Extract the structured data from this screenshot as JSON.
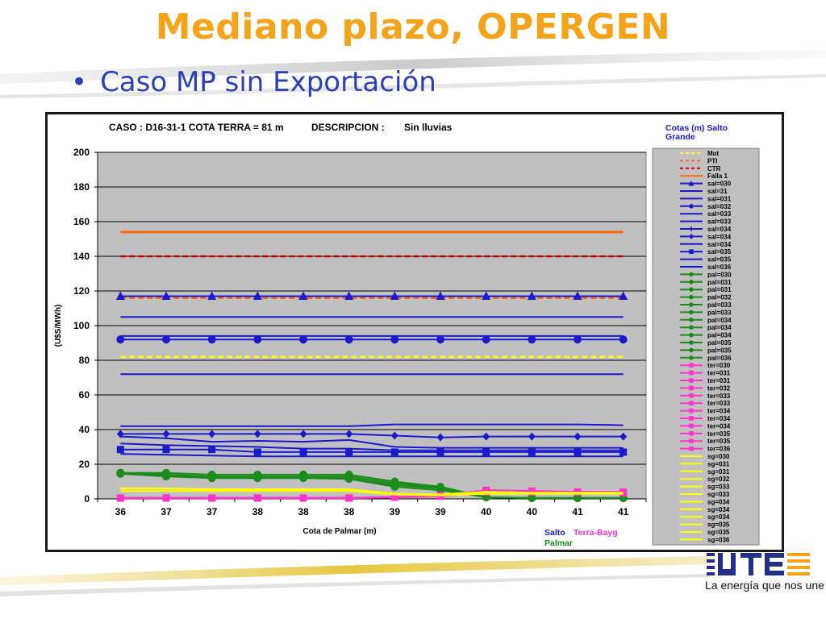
{
  "slide": {
    "title": "Mediano plazo, OPERGEN",
    "subtitle": "Caso MP sin Exportación",
    "bullet": "•",
    "tagline": "La energía que nos une",
    "logo_icon": "ute-logo-icon",
    "colors": {
      "title": "#f5a31a",
      "subtitle": "#2a3fb8",
      "plot_bg": "#c0c0c0",
      "legend_bg": "#c0c0c0"
    }
  },
  "chart_data": {
    "type": "line",
    "title_parts": [
      "CASO : D16-31-1 COTA TERRA = 81 m",
      "DESCRIPCION :",
      "Sin lluvias"
    ],
    "xlabel": "Cota de Palmar (m)",
    "ylabel": "(U$S/MWh)",
    "categories": [
      "36",
      "37",
      "37",
      "38",
      "38",
      "38",
      "39",
      "39",
      "40",
      "40",
      "41",
      "41"
    ],
    "ylim": [
      0,
      200
    ],
    "yticks": [
      0,
      20,
      40,
      60,
      80,
      100,
      120,
      140,
      160,
      180,
      200
    ],
    "grid": true,
    "legend": {
      "title": "Cotas (m) Salto Grande",
      "position": "right",
      "entries": [
        {
          "label": "Mot",
          "color": "#ffff00",
          "dash": true,
          "marker": "none"
        },
        {
          "label": "PTI",
          "color": "#ff6600",
          "dash": true,
          "marker": "none"
        },
        {
          "label": "CTR",
          "color": "#cc0000",
          "dash": true,
          "marker": "none"
        },
        {
          "label": "Falla 1",
          "color": "#ff6600",
          "dash": false,
          "marker": "none"
        },
        {
          "label": "sal=030",
          "color": "#1a1acc",
          "dash": false,
          "marker": "triangle"
        },
        {
          "label": "sal=31",
          "color": "#1a1acc",
          "dash": false,
          "marker": "none"
        },
        {
          "label": "sal=031",
          "color": "#1a1acc",
          "dash": false,
          "marker": "none"
        },
        {
          "label": "sal=032",
          "color": "#1a1acc",
          "dash": false,
          "marker": "circle"
        },
        {
          "label": "sal=033",
          "color": "#1a1acc",
          "dash": false,
          "marker": "none"
        },
        {
          "label": "sal=033",
          "color": "#1a1acc",
          "dash": false,
          "marker": "none"
        },
        {
          "label": "sal=034",
          "color": "#1a1acc",
          "dash": false,
          "marker": "plus"
        },
        {
          "label": "sal=034",
          "color": "#1a1acc",
          "dash": false,
          "marker": "diamond"
        },
        {
          "label": "sal=034",
          "color": "#1a1acc",
          "dash": false,
          "marker": "none"
        },
        {
          "label": "sal=035",
          "color": "#1a1acc",
          "dash": false,
          "marker": "square"
        },
        {
          "label": "sal=035",
          "color": "#1a1acc",
          "dash": false,
          "marker": "none"
        },
        {
          "label": "sal=036",
          "color": "#1a1acc",
          "dash": false,
          "marker": "none"
        },
        {
          "label": "pal=030",
          "color": "#1a8c1a",
          "dash": false,
          "marker": "circle"
        },
        {
          "label": "pal=031",
          "color": "#1a8c1a",
          "dash": false,
          "marker": "circle"
        },
        {
          "label": "pal=031",
          "color": "#1a8c1a",
          "dash": false,
          "marker": "circle"
        },
        {
          "label": "pal=032",
          "color": "#1a8c1a",
          "dash": false,
          "marker": "circle"
        },
        {
          "label": "pal=033",
          "color": "#1a8c1a",
          "dash": false,
          "marker": "circle"
        },
        {
          "label": "pal=033",
          "color": "#1a8c1a",
          "dash": false,
          "marker": "circle"
        },
        {
          "label": "pal=034",
          "color": "#1a8c1a",
          "dash": false,
          "marker": "circle"
        },
        {
          "label": "pal=034",
          "color": "#1a8c1a",
          "dash": false,
          "marker": "circle"
        },
        {
          "label": "pal=034",
          "color": "#1a8c1a",
          "dash": false,
          "marker": "circle"
        },
        {
          "label": "pal=035",
          "color": "#1a8c1a",
          "dash": false,
          "marker": "circle"
        },
        {
          "label": "pal=035",
          "color": "#1a8c1a",
          "dash": false,
          "marker": "circle"
        },
        {
          "label": "pal=036",
          "color": "#1a8c1a",
          "dash": false,
          "marker": "circle"
        },
        {
          "label": "ter=030",
          "color": "#ff33cc",
          "dash": false,
          "marker": "square"
        },
        {
          "label": "ter=031",
          "color": "#ff33cc",
          "dash": false,
          "marker": "square"
        },
        {
          "label": "ter=031",
          "color": "#ff33cc",
          "dash": false,
          "marker": "square"
        },
        {
          "label": "ter=032",
          "color": "#ff33cc",
          "dash": false,
          "marker": "square"
        },
        {
          "label": "ter=033",
          "color": "#ff33cc",
          "dash": false,
          "marker": "square"
        },
        {
          "label": "ter=033",
          "color": "#ff33cc",
          "dash": false,
          "marker": "square"
        },
        {
          "label": "ter=034",
          "color": "#ff33cc",
          "dash": false,
          "marker": "square"
        },
        {
          "label": "ter=034",
          "color": "#ff33cc",
          "dash": false,
          "marker": "square"
        },
        {
          "label": "ter=034",
          "color": "#ff33cc",
          "dash": false,
          "marker": "square"
        },
        {
          "label": "ter=035",
          "color": "#ff33cc",
          "dash": false,
          "marker": "square"
        },
        {
          "label": "ter=035",
          "color": "#ff33cc",
          "dash": false,
          "marker": "square"
        },
        {
          "label": "ter=036",
          "color": "#ff33cc",
          "dash": false,
          "marker": "square"
        },
        {
          "label": "sg=030",
          "color": "#ffff00",
          "dash": false,
          "marker": "none"
        },
        {
          "label": "sg=031",
          "color": "#ffff00",
          "dash": false,
          "marker": "none"
        },
        {
          "label": "sg=031",
          "color": "#ffff00",
          "dash": false,
          "marker": "none"
        },
        {
          "label": "sg=032",
          "color": "#ffff00",
          "dash": false,
          "marker": "none"
        },
        {
          "label": "sg=033",
          "color": "#ffff00",
          "dash": false,
          "marker": "none"
        },
        {
          "label": "sg=033",
          "color": "#ffff00",
          "dash": false,
          "marker": "none"
        },
        {
          "label": "sg=034",
          "color": "#ffff00",
          "dash": false,
          "marker": "none"
        },
        {
          "label": "sg=034",
          "color": "#ffff00",
          "dash": false,
          "marker": "none"
        },
        {
          "label": "sg=034",
          "color": "#ffff00",
          "dash": false,
          "marker": "none"
        },
        {
          "label": "sg=035",
          "color": "#ffff00",
          "dash": false,
          "marker": "none"
        },
        {
          "label": "sg=035",
          "color": "#ffff00",
          "dash": false,
          "marker": "none"
        },
        {
          "label": "sg=036",
          "color": "#ffff00",
          "dash": false,
          "marker": "none"
        }
      ]
    },
    "group_labels": [
      {
        "text": "Salto",
        "color": "#1a1acc"
      },
      {
        "text": "Terra-Bayg",
        "color": "#ff33cc"
      },
      {
        "text": "Palmar",
        "color": "#1a8c1a"
      }
    ],
    "series": [
      {
        "name": "Falla 1",
        "color": "#ff6600",
        "width": 3,
        "dash": false,
        "marker": "none",
        "values": [
          154,
          154,
          154,
          154,
          154,
          154,
          154,
          154,
          154,
          154,
          154,
          154
        ]
      },
      {
        "name": "CTR",
        "color": "#cc0000",
        "width": 2.5,
        "dash": true,
        "marker": "none",
        "values": [
          140,
          140,
          140,
          140,
          140,
          140,
          140,
          140,
          140,
          140,
          140,
          140
        ]
      },
      {
        "name": "PTI",
        "color": "#ff6600",
        "width": 2.5,
        "dash": true,
        "marker": "none",
        "values": [
          116,
          116,
          116,
          116,
          116,
          116,
          116,
          116,
          116,
          116,
          116,
          116
        ]
      },
      {
        "name": "Mot",
        "color": "#ffff00",
        "width": 2.5,
        "dash": true,
        "marker": "none",
        "values": [
          82,
          82,
          82,
          82,
          82,
          82,
          82,
          82,
          82,
          82,
          82,
          82
        ]
      },
      {
        "name": "sal=030",
        "color": "#1a1acc",
        "width": 2,
        "dash": false,
        "marker": "triangle",
        "values": [
          117,
          117,
          117,
          117,
          117,
          117,
          117,
          117,
          117,
          117,
          117,
          117
        ]
      },
      {
        "name": "sal=31",
        "color": "#1a1acc",
        "width": 2,
        "dash": false,
        "marker": "none",
        "values": [
          105,
          105,
          105,
          105,
          105,
          105,
          105,
          105,
          105,
          105,
          105,
          105
        ]
      },
      {
        "name": "sal=031",
        "color": "#1a1acc",
        "width": 2,
        "dash": false,
        "marker": "none",
        "values": [
          94,
          94,
          94,
          94,
          94,
          94,
          94,
          94,
          94,
          94,
          94,
          94
        ]
      },
      {
        "name": "sal=032",
        "color": "#1a1acc",
        "width": 2,
        "dash": false,
        "marker": "circle",
        "values": [
          92,
          92,
          92,
          92,
          92,
          92,
          92,
          92,
          92,
          92,
          92,
          92
        ]
      },
      {
        "name": "sal=033",
        "color": "#1a1acc",
        "width": 2,
        "dash": false,
        "marker": "none",
        "values": [
          72,
          72,
          72,
          72,
          72,
          72,
          72,
          72,
          72,
          72,
          72,
          72
        ]
      },
      {
        "name": "sal=033",
        "color": "#1a1acc",
        "width": 2,
        "dash": false,
        "marker": "none",
        "values": [
          42,
          42,
          42,
          42,
          42,
          42,
          43,
          43,
          43,
          43,
          43,
          42.5
        ]
      },
      {
        "name": "sal=034",
        "color": "#1a1acc",
        "width": 2,
        "dash": false,
        "marker": "diamond",
        "values": [
          37.5,
          37.5,
          37.5,
          37.5,
          37.5,
          37.5,
          36.5,
          35.5,
          36,
          36,
          36,
          36
        ]
      },
      {
        "name": "sal=034",
        "color": "#1a1acc",
        "width": 2,
        "dash": false,
        "marker": "none",
        "values": [
          36,
          35,
          33,
          33.5,
          33,
          34,
          30,
          29.5,
          29.5,
          29.5,
          29.5,
          29.5
        ]
      },
      {
        "name": "sal=034",
        "color": "#1a1acc",
        "width": 2,
        "dash": false,
        "marker": "none",
        "values": [
          32,
          31,
          30.5,
          30,
          29,
          29,
          28,
          28,
          28,
          28,
          28,
          28
        ]
      },
      {
        "name": "sal=035",
        "color": "#1a1acc",
        "width": 2,
        "dash": false,
        "marker": "square",
        "values": [
          28.5,
          28.5,
          28.5,
          27,
          27,
          27,
          27,
          27,
          27,
          27,
          27,
          27
        ]
      },
      {
        "name": "sal=035",
        "color": "#1a1acc",
        "width": 2,
        "dash": false,
        "marker": "none",
        "values": [
          26,
          25.5,
          25,
          24.5,
          24.5,
          24.5,
          24.5,
          24.5,
          24.5,
          24.5,
          24.5,
          24.5
        ]
      },
      {
        "name": "pal=030",
        "color": "#1a8c1a",
        "width": 2,
        "dash": false,
        "marker": "circle",
        "values": [
          15,
          15,
          14,
          14,
          14,
          14,
          10,
          7,
          1,
          0.5,
          0.5,
          0.5
        ]
      },
      {
        "name": "pal=031",
        "color": "#1a8c1a",
        "width": 2,
        "dash": false,
        "marker": "circle",
        "values": [
          15,
          14,
          13,
          13,
          13,
          13,
          9,
          6.5,
          1,
          0.5,
          0.5,
          0.5
        ]
      },
      {
        "name": "pal=032",
        "color": "#1a8c1a",
        "width": 2,
        "dash": false,
        "marker": "circle",
        "values": [
          15,
          13.5,
          12.5,
          12.5,
          12.5,
          12,
          8,
          6,
          1,
          0.5,
          0.5,
          0.5
        ]
      },
      {
        "name": "pal=033",
        "color": "#1a8c1a",
        "width": 2,
        "dash": false,
        "marker": "circle",
        "values": [
          14.5,
          13,
          12,
          12,
          12,
          11.5,
          7,
          5,
          1,
          0.5,
          0.5,
          0.5
        ]
      },
      {
        "name": "ter=030",
        "color": "#ff33cc",
        "width": 2.5,
        "dash": false,
        "marker": "square",
        "values": [
          0.5,
          0.5,
          0.5,
          0.5,
          0.5,
          0.5,
          1,
          2,
          5,
          4.5,
          4,
          4
        ]
      },
      {
        "name": "ter=034",
        "color": "#ff33cc",
        "width": 2.5,
        "dash": false,
        "marker": "square",
        "values": [
          0.5,
          0.5,
          0.5,
          0.5,
          0.5,
          0.5,
          1,
          1.5,
          4,
          4,
          4,
          3.5
        ]
      },
      {
        "name": "sg=030",
        "color": "#ffff00",
        "width": 2.5,
        "dash": false,
        "marker": "none",
        "values": [
          6,
          6,
          5.5,
          5.5,
          5.5,
          5.5,
          3,
          2.5,
          4,
          3.5,
          3.5,
          3.5
        ]
      },
      {
        "name": "sg=034",
        "color": "#ffff00",
        "width": 2,
        "dash": false,
        "marker": "none",
        "values": [
          4.5,
          4.5,
          4.5,
          4.5,
          4.5,
          4.5,
          2.5,
          2,
          3,
          3,
          3,
          3
        ]
      }
    ]
  }
}
